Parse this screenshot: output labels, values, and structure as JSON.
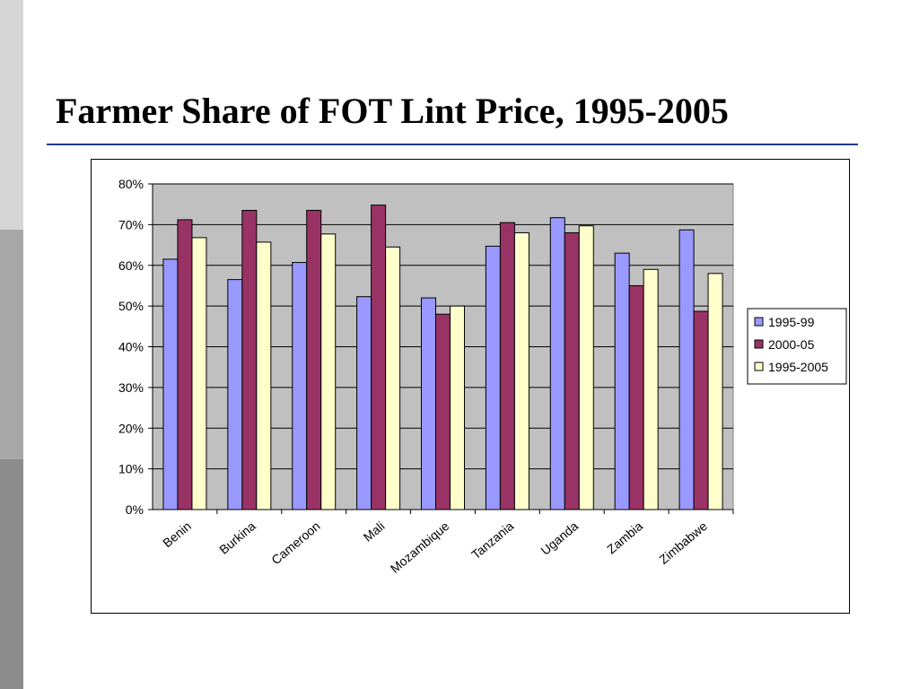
{
  "slide": {
    "title": "Farmer Share of  FOT Lint Price, 1995-2005"
  },
  "chart_data": {
    "type": "bar",
    "categories": [
      "Benin",
      "Burkina",
      "Cameroon",
      "Mali",
      "Mozambique",
      "Tanzania",
      "Uganda",
      "Zambia",
      "Zimbabwe"
    ],
    "series": [
      {
        "name": "1995-99",
        "color": "#9999ff",
        "values": [
          61.5,
          56.5,
          60.7,
          52.3,
          52,
          64.7,
          71.7,
          63,
          68.7
        ]
      },
      {
        "name": "2000-05",
        "color": "#993366",
        "values": [
          71.2,
          73.5,
          73.5,
          74.8,
          48,
          70.5,
          68,
          55,
          48.7
        ]
      },
      {
        "name": "1995-2005",
        "color": "#ffffcc",
        "values": [
          66.8,
          65.7,
          67.7,
          64.5,
          50,
          68,
          69.7,
          59,
          58
        ]
      }
    ],
    "yticks": [
      "0%",
      "10%",
      "20%",
      "30%",
      "40%",
      "50%",
      "60%",
      "70%",
      "80%"
    ],
    "ylim": [
      0,
      80
    ],
    "grid": true,
    "plot_background": "#c0c0c0",
    "legend_position": "right",
    "xlabel": "",
    "ylabel": ""
  }
}
